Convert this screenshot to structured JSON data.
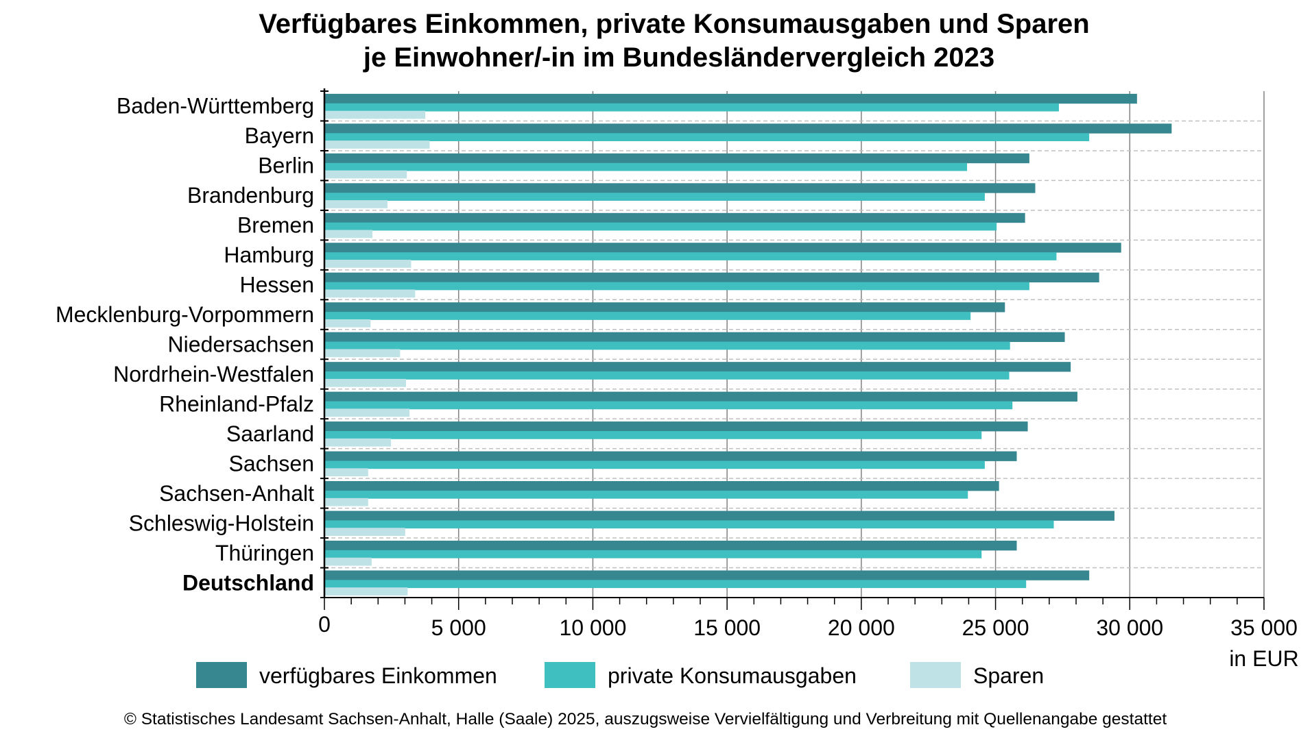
{
  "chart_data": {
    "type": "bar",
    "orientation": "horizontal",
    "title": "Verfügbares Einkommen, private Konsumausgaben und Sparen",
    "subtitle": "je Einwohner/-in im Bundesländervergleich 2023",
    "xlabel": "in EUR",
    "ylabel": "",
    "xlim": [
      0,
      35000
    ],
    "x_ticks": [
      0,
      5000,
      10000,
      15000,
      20000,
      25000,
      30000,
      35000
    ],
    "x_tick_labels": [
      "0",
      "5 000",
      "10 000",
      "15 000",
      "20 000",
      "25 000",
      "30 000",
      "35 000"
    ],
    "grid": true,
    "legend_position": "bottom",
    "categories": [
      "Baden-Württemberg",
      "Bayern",
      "Berlin",
      "Brandenburg",
      "Bremen",
      "Hamburg",
      "Hessen",
      "Mecklenburg-Vorpommern",
      "Niedersachsen",
      "Nordrhein-Westfalen",
      "Rheinland-Pfalz",
      "Saarland",
      "Sachsen",
      "Sachsen-Anhalt",
      "Schleswig-Holstein",
      "Thüringen",
      "Deutschland"
    ],
    "bold_categories": [
      "Deutschland"
    ],
    "series": [
      {
        "name": "verfügbares Einkommen",
        "color": "#368790",
        "values": [
          30270,
          31560,
          26260,
          26480,
          26100,
          29680,
          28860,
          25350,
          27580,
          27800,
          28050,
          26200,
          25790,
          25130,
          29430,
          25790,
          28490
        ]
      },
      {
        "name": "private Konsumausgaben",
        "color": "#40bfc1",
        "values": [
          27360,
          28490,
          23940,
          24600,
          25040,
          27270,
          26260,
          24070,
          25540,
          25510,
          25630,
          24480,
          24600,
          23970,
          27170,
          24480,
          26140
        ]
      },
      {
        "name": "Sparen",
        "color": "#bfe2e6",
        "values": [
          3760,
          3920,
          3070,
          2350,
          1790,
          3230,
          3380,
          1720,
          2820,
          3040,
          3170,
          2480,
          1630,
          1630,
          3010,
          1760,
          3100
        ]
      }
    ]
  },
  "footer": "© Statistisches Landesamt Sachsen-Anhalt, Halle (Saale) 2025, auszugsweise Vervielfältigung und Verbreitung mit Quellenangabe gestattet"
}
